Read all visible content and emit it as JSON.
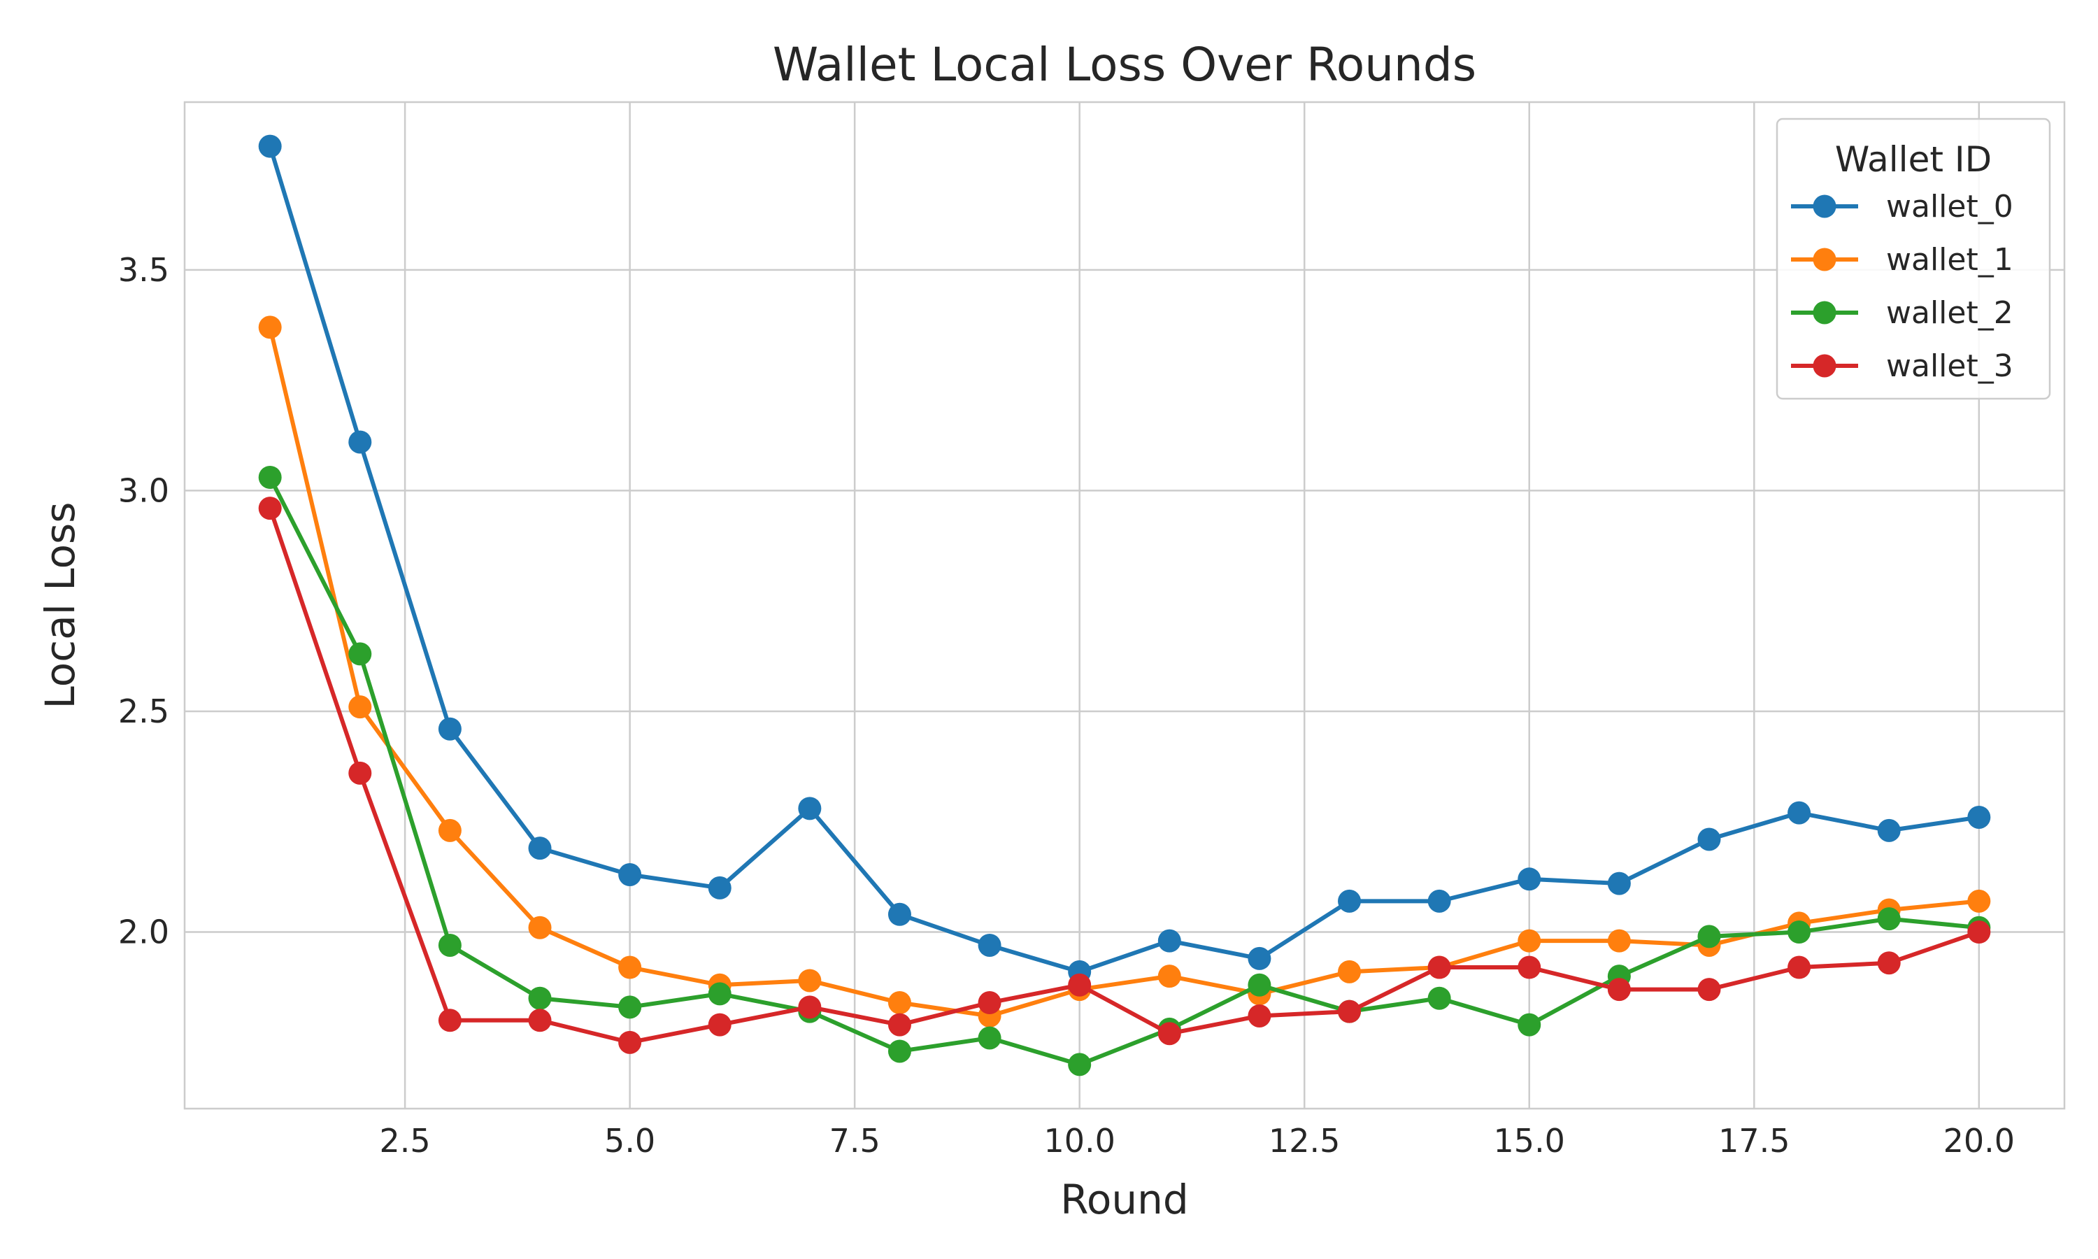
{
  "chart_data": {
    "type": "line",
    "title": "Wallet Local Loss Over Rounds",
    "xlabel": "Round",
    "ylabel": "Local Loss",
    "xlim": [
      0.05,
      20.95
    ],
    "ylim": [
      1.6,
      3.88
    ],
    "xticks": [
      2.5,
      5.0,
      7.5,
      10.0,
      12.5,
      15.0,
      17.5,
      20.0
    ],
    "xtick_labels": [
      "2.5",
      "5.0",
      "7.5",
      "10.0",
      "12.5",
      "15.0",
      "17.5",
      "20.0"
    ],
    "yticks": [
      2.0,
      2.5,
      3.0,
      3.5
    ],
    "ytick_labels": [
      "2.0",
      "2.5",
      "3.0",
      "3.5"
    ],
    "grid": true,
    "legend": {
      "title": "Wallet ID",
      "position": "top-right"
    },
    "x": [
      1,
      2,
      3,
      4,
      5,
      6,
      7,
      8,
      9,
      10,
      11,
      12,
      13,
      14,
      15,
      16,
      17,
      18,
      19,
      20
    ],
    "series": [
      {
        "name": "wallet_0",
        "color": "#1f77b4",
        "values": [
          3.78,
          3.11,
          2.46,
          2.19,
          2.13,
          2.1,
          2.28,
          2.04,
          1.97,
          1.91,
          1.98,
          1.94,
          2.07,
          2.07,
          2.12,
          2.11,
          2.21,
          2.27,
          2.23,
          2.26
        ]
      },
      {
        "name": "wallet_1",
        "color": "#ff7f0e",
        "values": [
          3.37,
          2.51,
          2.23,
          2.01,
          1.92,
          1.88,
          1.89,
          1.84,
          1.81,
          1.87,
          1.9,
          1.86,
          1.91,
          1.92,
          1.98,
          1.98,
          1.97,
          2.02,
          2.05,
          2.07
        ]
      },
      {
        "name": "wallet_2",
        "color": "#2ca02c",
        "values": [
          3.03,
          2.63,
          1.97,
          1.85,
          1.83,
          1.86,
          1.82,
          1.73,
          1.76,
          1.7,
          1.78,
          1.88,
          1.82,
          1.85,
          1.79,
          1.9,
          1.99,
          2.0,
          2.03,
          2.01
        ]
      },
      {
        "name": "wallet_3",
        "color": "#d62728",
        "values": [
          2.96,
          2.36,
          1.8,
          1.8,
          1.75,
          1.79,
          1.83,
          1.79,
          1.84,
          1.88,
          1.77,
          1.81,
          1.82,
          1.92,
          1.92,
          1.87,
          1.87,
          1.92,
          1.93,
          2.0
        ]
      }
    ]
  }
}
